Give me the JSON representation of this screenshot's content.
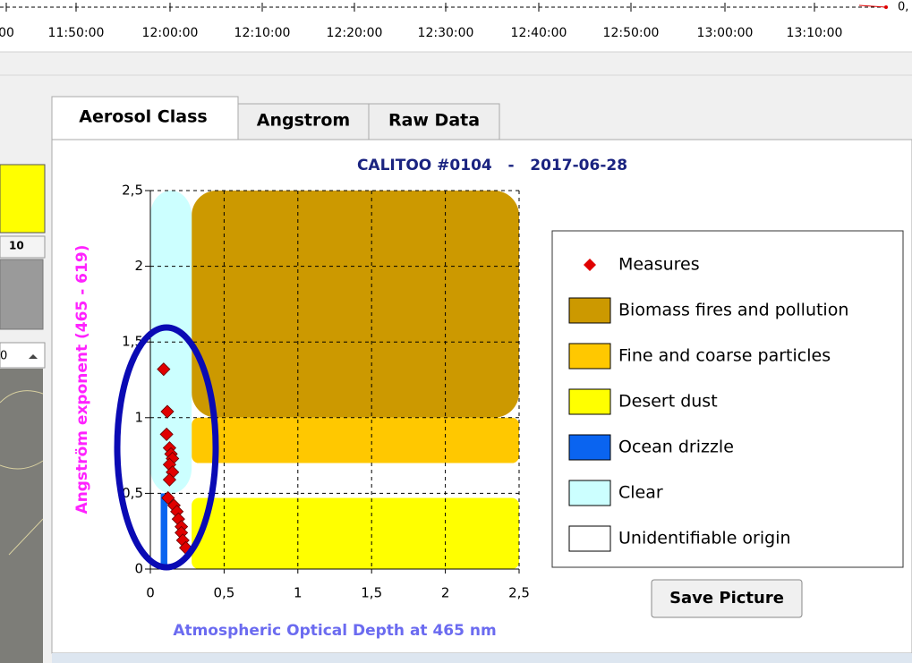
{
  "timeline": {
    "labels": [
      "00",
      "11:50:00",
      "12:00:00",
      "12:10:00",
      "12:20:00",
      "12:30:00",
      "12:40:00",
      "12:50:00",
      "13:00:00",
      "13:10:00"
    ],
    "right_label": "0,"
  },
  "left_panel": {
    "field_label": "10",
    "spinner_value": "0"
  },
  "tabs": [
    "Aerosol Class",
    "Angstrom",
    "Raw Data"
  ],
  "button": "Save Picture",
  "chart_data": {
    "type": "scatter",
    "title": "CALITOO #0104   -   2017-06-28",
    "x_label": "Atmospheric Optical Depth at 465 nm",
    "y_label": "Angström exponent (465 - 619)",
    "xlim": [
      0,
      2.5
    ],
    "ylim": [
      0,
      2.5
    ],
    "xticks": [
      0,
      {
        "value": 0.5,
        "label": "0,5"
      },
      1,
      {
        "value": 1.5,
        "label": "1,5"
      },
      2,
      {
        "value": 2.5,
        "label": "2,5"
      }
    ],
    "yticks": [
      0,
      {
        "value": 0.5,
        "label": "0,5"
      },
      1,
      {
        "value": 1.5,
        "label": "1,5"
      },
      2,
      {
        "value": 2.5,
        "label": "2,5"
      }
    ],
    "grid": true,
    "series": [
      {
        "name": "Measures",
        "color": "#e00000",
        "x": [
          0.09,
          0.115,
          0.11,
          0.13,
          0.14,
          0.15,
          0.13,
          0.15,
          0.13,
          0.12,
          0.16,
          0.18,
          0.19,
          0.21,
          0.21,
          0.22,
          0.24
        ],
        "values": [
          1.32,
          1.04,
          0.89,
          0.8,
          0.76,
          0.73,
          0.69,
          0.64,
          0.59,
          0.47,
          0.42,
          0.38,
          0.33,
          0.28,
          0.24,
          0.19,
          0.14
        ]
      }
    ],
    "regions": [
      {
        "name": "Biomass fires and pollution",
        "color": "#cc9900",
        "x": [
          0.28,
          2.5
        ],
        "y": [
          1,
          2.5
        ]
      },
      {
        "name": "Fine and coarse particles",
        "color": "#ffc800",
        "x": [
          0.28,
          2.5
        ],
        "y": [
          0.7,
          1
        ]
      },
      {
        "name": "Desert dust",
        "color": "#ffff00",
        "x": [
          0.28,
          2.5
        ],
        "y": [
          0,
          0.47
        ]
      },
      {
        "name": "Ocean drizzle",
        "color": "#0a64f0",
        "x": [
          0.07,
          0.115
        ],
        "y": [
          0,
          0.5
        ]
      },
      {
        "name": "Clear",
        "color": "#ccffff",
        "x": [
          0,
          0.28
        ],
        "y": [
          0.5,
          2.5
        ]
      },
      {
        "name": "Unidentifiable origin",
        "color": "#ffffff"
      }
    ]
  }
}
